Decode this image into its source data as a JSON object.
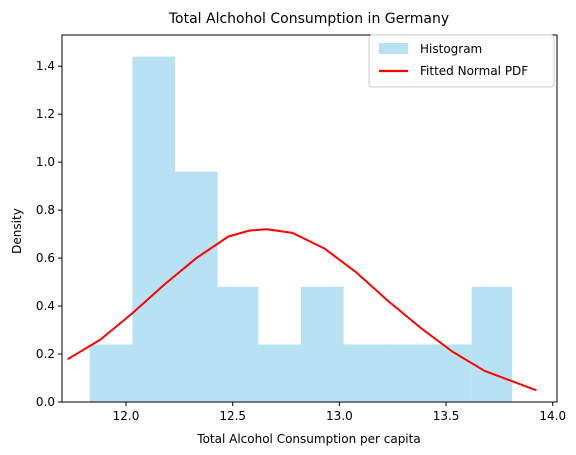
{
  "chart_data": {
    "type": "bar",
    "title": "Total Alchohol Consumption in Germany",
    "xlabel": "Total Alcohol Consumption per capita",
    "ylabel": "Density",
    "xlim": [
      11.7,
      14.02
    ],
    "ylim": [
      0,
      1.53
    ],
    "xticks": [
      12.0,
      12.5,
      13.0,
      13.5,
      14.0
    ],
    "xtick_labels": [
      "12.0",
      "12.5",
      "13.0",
      "13.5",
      "14.0"
    ],
    "yticks": [
      0.0,
      0.2,
      0.4,
      0.6,
      0.8,
      1.0,
      1.2,
      1.4
    ],
    "ytick_labels": [
      "0.0",
      "0.2",
      "0.4",
      "0.6",
      "0.8",
      "1.0",
      "1.2",
      "1.4"
    ],
    "grid": false,
    "legend_position": "top-right",
    "series": [
      {
        "name": "Histogram",
        "kind": "histogram",
        "color": "#87CEEB",
        "bin_edges": [
          11.83,
          12.03,
          12.23,
          12.43,
          12.62,
          12.82,
          13.02,
          13.22,
          13.42,
          13.62,
          13.81
        ],
        "values": [
          0.24,
          1.44,
          0.96,
          0.48,
          0.24,
          0.48,
          0.24,
          0.24,
          0.24,
          0.48
        ]
      },
      {
        "name": "Fitted Normal PDF",
        "kind": "line",
        "color": "#FF0000",
        "x": [
          11.73,
          11.88,
          12.03,
          12.18,
          12.33,
          12.48,
          12.58,
          12.66,
          12.78,
          12.93,
          13.08,
          13.23,
          13.38,
          13.53,
          13.68,
          13.83,
          13.92
        ],
        "y": [
          0.18,
          0.26,
          0.37,
          0.49,
          0.6,
          0.69,
          0.715,
          0.72,
          0.705,
          0.64,
          0.54,
          0.42,
          0.31,
          0.21,
          0.13,
          0.08,
          0.05
        ]
      }
    ]
  }
}
